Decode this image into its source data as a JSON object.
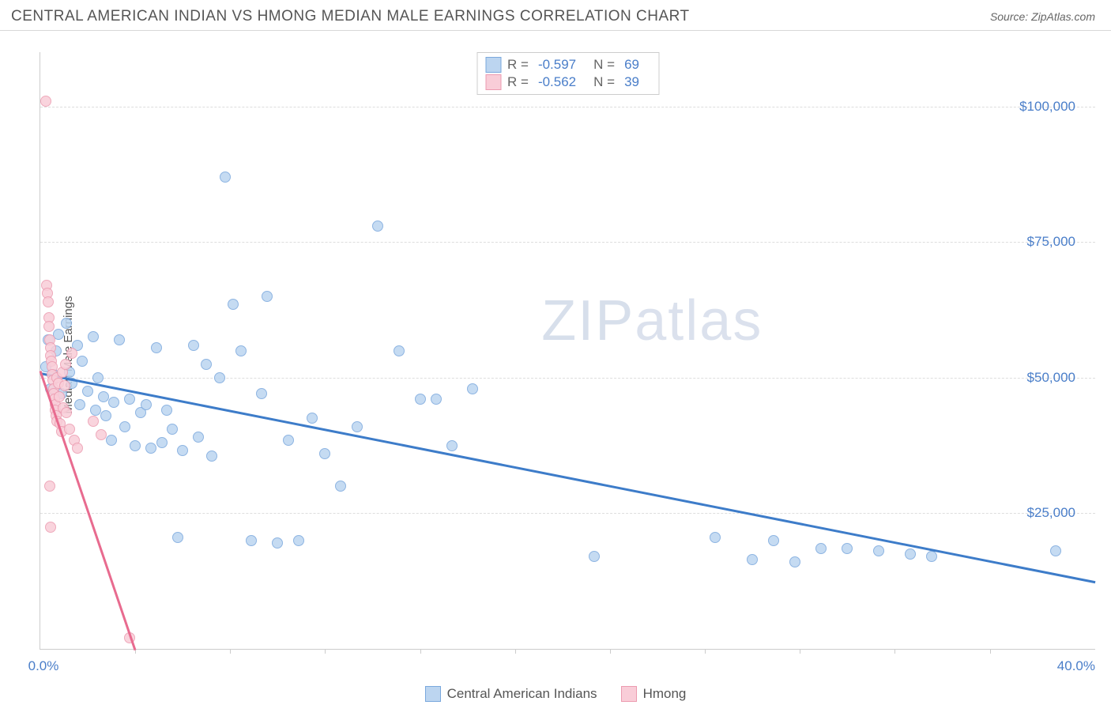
{
  "header": {
    "title": "CENTRAL AMERICAN INDIAN VS HMONG MEDIAN MALE EARNINGS CORRELATION CHART",
    "source_prefix": "Source: ",
    "source": "ZipAtlas.com"
  },
  "watermark": {
    "text_bold": "ZIP",
    "text_light": "atlas"
  },
  "chart": {
    "type": "scatter",
    "ylabel": "Median Male Earnings",
    "background_color": "#ffffff",
    "grid_color": "#dddddd",
    "axis_color": "#cccccc",
    "xlim": [
      0,
      40
    ],
    "ylim": [
      0,
      110000
    ],
    "y_ticks": [
      {
        "v": 25000,
        "label": "$25,000"
      },
      {
        "v": 50000,
        "label": "$50,000"
      },
      {
        "v": 75000,
        "label": "$75,000"
      },
      {
        "v": 100000,
        "label": "$100,000"
      }
    ],
    "x_display": {
      "min_label": "0.0%",
      "max_label": "40.0%"
    },
    "x_tick_marks": [
      3.6,
      7.2,
      10.8,
      14.4,
      18.0,
      21.6,
      25.2,
      28.8,
      32.4,
      36.0
    ],
    "series": [
      {
        "name": "Central American Indians",
        "color_fill": "#bcd5f0",
        "color_stroke": "#7aa8dd",
        "marker_size": 14,
        "trend": {
          "x1": 0,
          "y1": 51000,
          "x2": 40,
          "y2": 12500,
          "color": "#3d7cc9",
          "width": 3
        },
        "R": "-0.597",
        "N": "69",
        "points": [
          [
            0.2,
            52000
          ],
          [
            0.3,
            57000
          ],
          [
            0.4,
            48000
          ],
          [
            0.5,
            50500
          ],
          [
            0.6,
            55000
          ],
          [
            0.7,
            58000
          ],
          [
            0.8,
            47000
          ],
          [
            1.0,
            60000
          ],
          [
            1.1,
            51000
          ],
          [
            1.2,
            49000
          ],
          [
            1.4,
            56000
          ],
          [
            1.5,
            45000
          ],
          [
            1.6,
            53000
          ],
          [
            1.8,
            47500
          ],
          [
            2.0,
            57500
          ],
          [
            2.1,
            44000
          ],
          [
            2.2,
            50000
          ],
          [
            2.4,
            46500
          ],
          [
            2.5,
            43000
          ],
          [
            2.7,
            38500
          ],
          [
            2.8,
            45500
          ],
          [
            3.0,
            57000
          ],
          [
            3.2,
            41000
          ],
          [
            3.4,
            46000
          ],
          [
            3.6,
            37500
          ],
          [
            3.8,
            43500
          ],
          [
            4.0,
            45000
          ],
          [
            4.2,
            37000
          ],
          [
            4.4,
            55500
          ],
          [
            4.6,
            38000
          ],
          [
            4.8,
            44000
          ],
          [
            5.0,
            40500
          ],
          [
            5.2,
            20500
          ],
          [
            5.4,
            36500
          ],
          [
            5.8,
            56000
          ],
          [
            6.0,
            39000
          ],
          [
            6.3,
            52500
          ],
          [
            6.5,
            35500
          ],
          [
            6.8,
            50000
          ],
          [
            7.0,
            87000
          ],
          [
            7.3,
            63500
          ],
          [
            7.6,
            55000
          ],
          [
            8.0,
            20000
          ],
          [
            8.4,
            47000
          ],
          [
            8.6,
            65000
          ],
          [
            9.0,
            19500
          ],
          [
            9.4,
            38500
          ],
          [
            9.8,
            20000
          ],
          [
            10.3,
            42500
          ],
          [
            10.8,
            36000
          ],
          [
            11.4,
            30000
          ],
          [
            12.0,
            41000
          ],
          [
            12.8,
            78000
          ],
          [
            13.6,
            55000
          ],
          [
            14.4,
            46000
          ],
          [
            15.0,
            46000
          ],
          [
            15.6,
            37500
          ],
          [
            16.4,
            48000
          ],
          [
            21.0,
            17000
          ],
          [
            25.6,
            20500
          ],
          [
            27.0,
            16500
          ],
          [
            27.8,
            20000
          ],
          [
            28.6,
            16000
          ],
          [
            29.6,
            18500
          ],
          [
            30.6,
            18500
          ],
          [
            31.8,
            18000
          ],
          [
            33.0,
            17500
          ],
          [
            33.8,
            17000
          ],
          [
            38.5,
            18000
          ]
        ]
      },
      {
        "name": "Hmong",
        "color_fill": "#f9cdd8",
        "color_stroke": "#ec9bb0",
        "marker_size": 14,
        "trend": {
          "x1": 0,
          "y1": 51500,
          "x2": 3.6,
          "y2": 0,
          "color": "#e86b8f",
          "width": 3
        },
        "R": "-0.562",
        "N": "39",
        "points": [
          [
            0.2,
            101000
          ],
          [
            0.25,
            67000
          ],
          [
            0.28,
            65500
          ],
          [
            0.3,
            64000
          ],
          [
            0.32,
            61000
          ],
          [
            0.34,
            59500
          ],
          [
            0.36,
            57000
          ],
          [
            0.38,
            55500
          ],
          [
            0.4,
            54000
          ],
          [
            0.42,
            53000
          ],
          [
            0.44,
            52000
          ],
          [
            0.46,
            50500
          ],
          [
            0.48,
            49500
          ],
          [
            0.5,
            48000
          ],
          [
            0.52,
            47000
          ],
          [
            0.54,
            46000
          ],
          [
            0.56,
            45000
          ],
          [
            0.58,
            44000
          ],
          [
            0.6,
            43000
          ],
          [
            0.62,
            42000
          ],
          [
            0.64,
            50000
          ],
          [
            0.68,
            49000
          ],
          [
            0.72,
            46500
          ],
          [
            0.76,
            41500
          ],
          [
            0.8,
            40000
          ],
          [
            0.84,
            51000
          ],
          [
            0.88,
            44500
          ],
          [
            0.92,
            48500
          ],
          [
            0.96,
            52500
          ],
          [
            1.0,
            43500
          ],
          [
            1.1,
            40500
          ],
          [
            1.2,
            54500
          ],
          [
            1.3,
            38500
          ],
          [
            1.4,
            37000
          ],
          [
            0.35,
            30000
          ],
          [
            0.4,
            22500
          ],
          [
            2.0,
            42000
          ],
          [
            2.3,
            39500
          ],
          [
            3.4,
            2000
          ]
        ]
      }
    ]
  },
  "legend_top": {
    "R_label": "R =",
    "N_label": "N ="
  },
  "bottom_legend": {
    "items": [
      {
        "label": "Central American Indians",
        "fill": "#bcd5f0",
        "stroke": "#7aa8dd"
      },
      {
        "label": "Hmong",
        "fill": "#f9cdd8",
        "stroke": "#ec9bb0"
      }
    ]
  }
}
